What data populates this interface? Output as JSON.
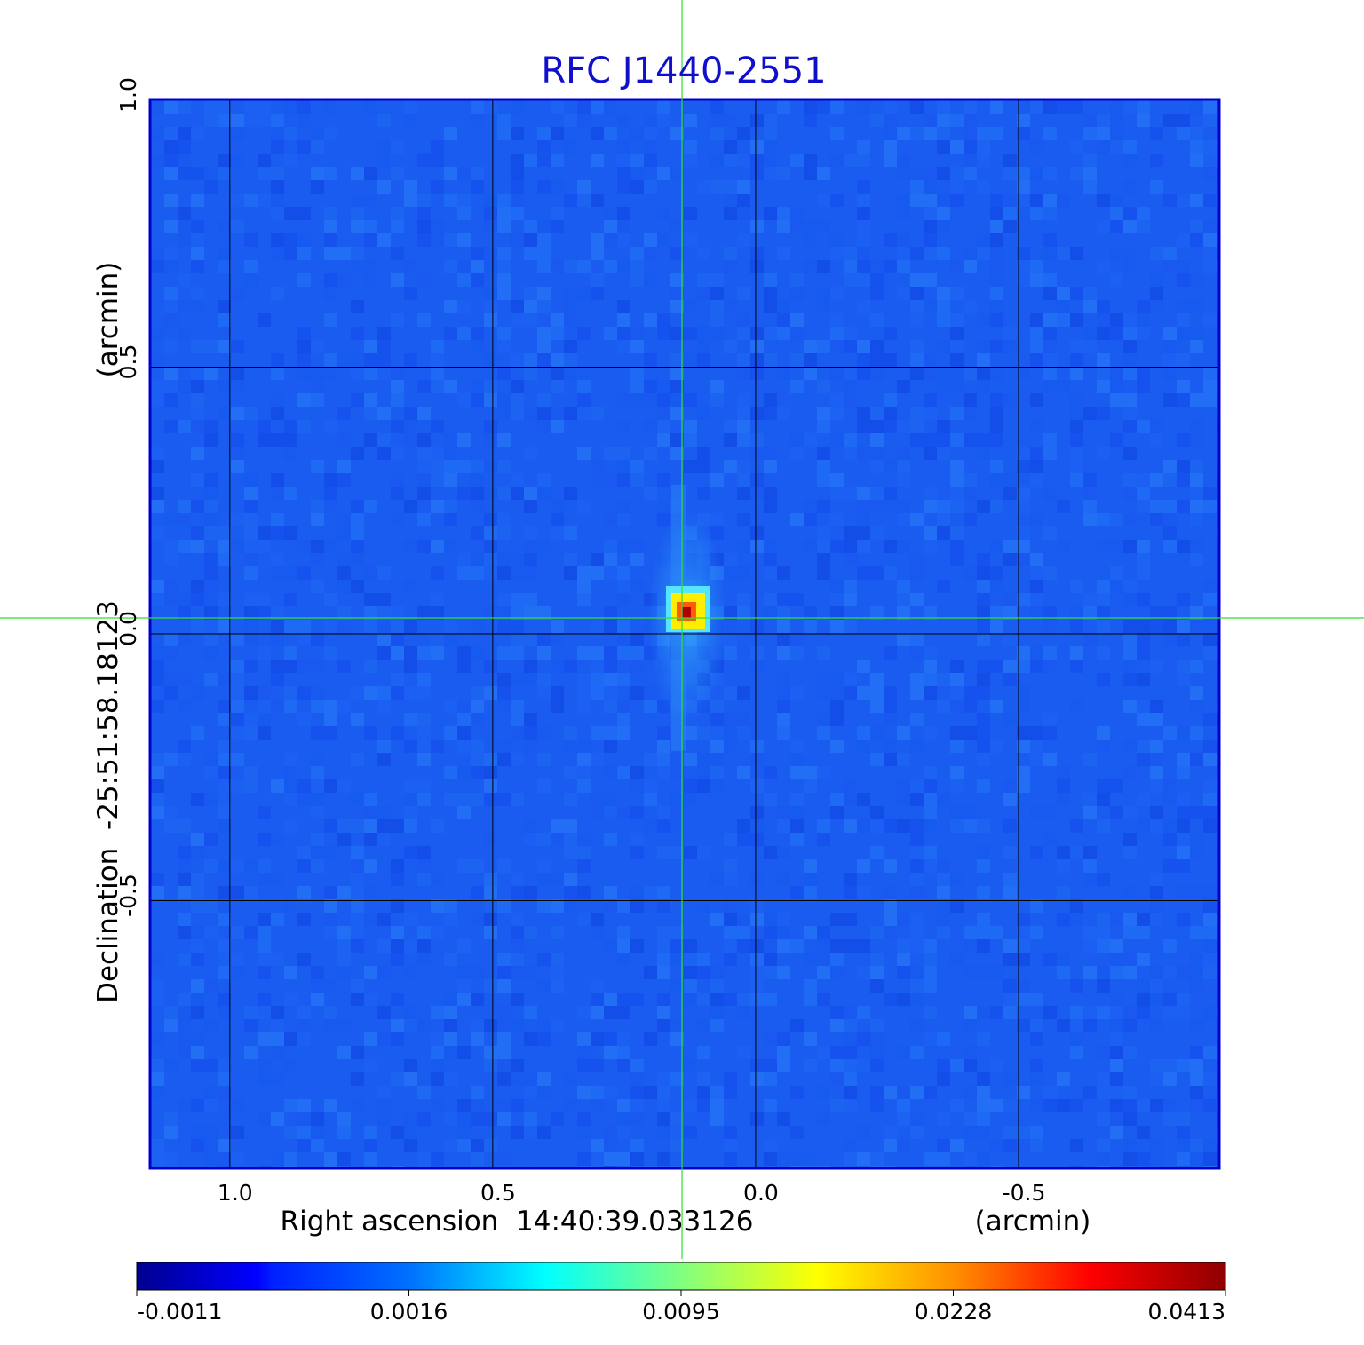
{
  "chart_data": {
    "type": "heatmap",
    "title": "RFC J1440-2551",
    "xlabel": "Right ascension  14:40:39.033126",
    "xunit": "(arcmin)",
    "ylabel": "Declination  -25:51:58.18123",
    "yunit": "(arcmin)",
    "xlim": [
      1.15,
      -0.88
    ],
    "ylim": [
      -1.0,
      1.0
    ],
    "x_ticks": [
      {
        "value": 1.0,
        "label": "1.0"
      },
      {
        "value": 0.5,
        "label": "0.5"
      },
      {
        "value": 0.0,
        "label": "0.0"
      },
      {
        "value": -0.5,
        "label": "-0.5"
      }
    ],
    "y_ticks": [
      {
        "value": 1.0,
        "label": "1.0"
      },
      {
        "value": 0.5,
        "label": "0.5"
      },
      {
        "value": 0.0,
        "label": "0.0"
      },
      {
        "value": -0.5,
        "label": "-0.5"
      }
    ],
    "grid": true,
    "crosshair": {
      "x": 0.14,
      "y": 0.03
    },
    "source_peak": {
      "x": 0.13,
      "y": 0.03,
      "value": 0.0413
    },
    "colorbar": {
      "colormap": "jet",
      "min": -0.0011,
      "max": 0.0413,
      "ticks": [
        "-0.0011",
        "0.0016",
        "0.0095",
        "0.0228",
        "0.0413"
      ]
    },
    "colors": {
      "title": "#1010cc",
      "frame": "#0000cc",
      "grid": "#000000",
      "crosshair": "#33dd33",
      "background_map": "#1a5cf0"
    }
  }
}
